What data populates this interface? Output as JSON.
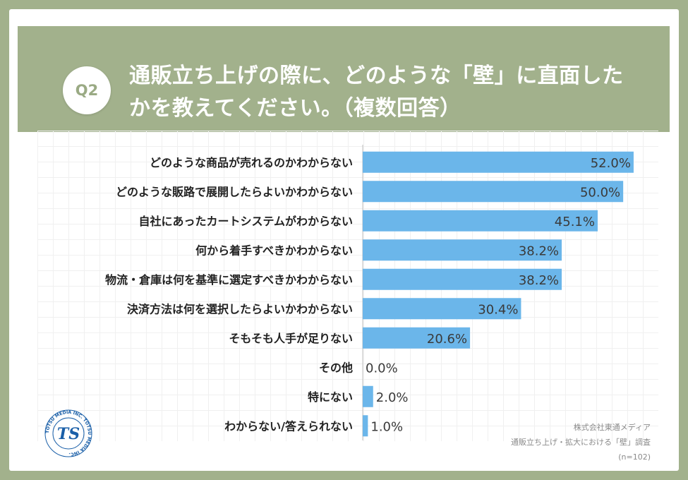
{
  "header": {
    "badge": "Q2",
    "question_line1": "通販立ち上げの際に、どのような「壁」に直面した",
    "question_line2": "かを教えてください。（複数回答）"
  },
  "footer": {
    "company": "株式会社東通メディア",
    "survey": "通販立ち上げ・拡大における「壁」調査",
    "sample": "(n=102)"
  },
  "logo": {
    "ring_text": "TOTSU MEDIA INC. TOTSU MEDIA INC.",
    "mark": "TS"
  },
  "colors": {
    "bar": "#6bb6ea",
    "background": "#a2b18c",
    "value_text": "#3a3a3a",
    "logo": "#1a5fa8"
  },
  "chart_data": {
    "type": "bar",
    "orientation": "horizontal",
    "categories": [
      "どのような商品が売れるのかわからない",
      "どのような販路で展開したらよいかわからない",
      "自社にあったカートシステムがわからない",
      "何から着手すべきかわからない",
      "物流・倉庫は何を基準に選定すべきかわからない",
      "決済方法は何を選択したらよいかわからない",
      "そもそも人手が足りない",
      "その他",
      "特にない",
      "わからない/答えられない"
    ],
    "values": [
      52.0,
      50.0,
      45.1,
      38.2,
      38.2,
      30.4,
      20.6,
      0.0,
      2.0,
      1.0
    ],
    "value_labels": [
      "52.0%",
      "50.0%",
      "45.1%",
      "38.2%",
      "38.2%",
      "30.4%",
      "20.6%",
      "0.0%",
      "2.0%",
      "1.0%"
    ],
    "xlim": [
      0,
      60
    ],
    "grid": true
  }
}
